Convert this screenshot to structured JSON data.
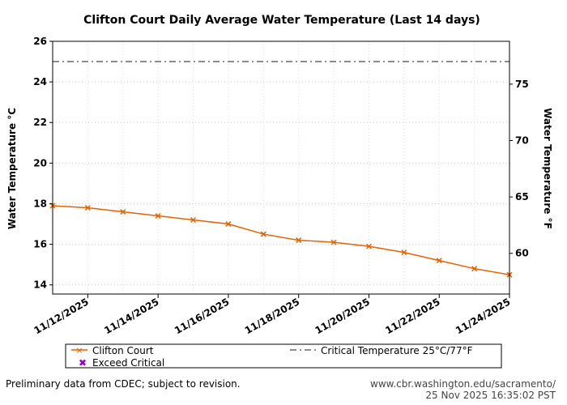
{
  "chart_data": {
    "type": "line",
    "title": "Clifton Court Daily Average Water Temperature (Last 14 days)",
    "ylabel": "Water Temperature °C",
    "ylabel_right": "Water Temperature °F",
    "x": [
      "11/11/2025",
      "11/12/2025",
      "11/13/2025",
      "11/14/2025",
      "11/15/2025",
      "11/16/2025",
      "11/17/2025",
      "11/18/2025",
      "11/19/2025",
      "11/20/2025",
      "11/21/2025",
      "11/22/2025",
      "11/23/2025",
      "11/24/2025"
    ],
    "x_tick_labels": [
      "11/12/2025",
      "11/14/2025",
      "11/16/2025",
      "11/18/2025",
      "11/20/2025",
      "11/22/2025",
      "11/24/2025"
    ],
    "series": [
      {
        "name": "Clifton Court",
        "color": "#e66100",
        "marker": "x",
        "values": [
          17.9,
          17.8,
          17.6,
          17.4,
          17.2,
          17.0,
          16.5,
          16.2,
          16.1,
          15.9,
          15.6,
          15.2,
          14.8,
          14.5
        ]
      }
    ],
    "exceed_critical": {
      "name": "Exceed Critical",
      "color": "#9400d3",
      "values": []
    },
    "critical": {
      "name": "Critical Temperature 25°C/77°F",
      "value": 25,
      "color": "#666666"
    },
    "ylim": [
      13.55,
      26
    ],
    "yticks": [
      14,
      16,
      18,
      20,
      22,
      24,
      26
    ],
    "yticks_right": [
      60,
      65,
      70,
      75
    ],
    "grid": true,
    "legend": "bottom"
  },
  "footer": {
    "left": "Preliminary data from CDEC; subject to revision.",
    "right_url": "www.cbr.washington.edu/sacramento/",
    "right_time": "25 Nov 2025 16:35:02 PST"
  }
}
